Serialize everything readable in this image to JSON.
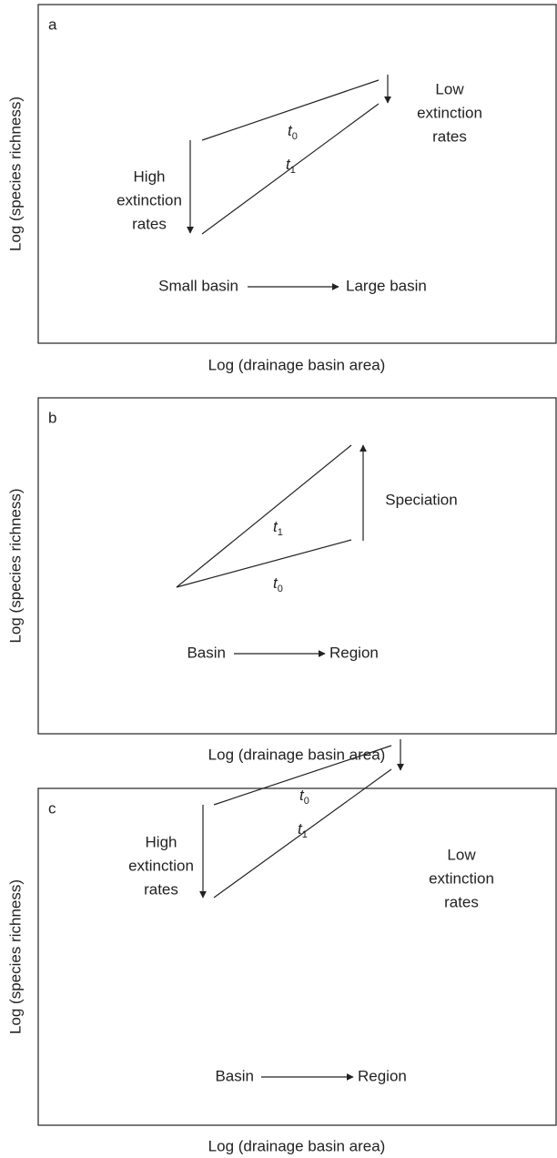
{
  "panels": [
    {
      "label": "a",
      "y_axis_label": "Log (species richness)",
      "x_axis_label": "Log (drainage basin area)",
      "annotations": [
        [
          "High",
          "extinction",
          "rates"
        ],
        [
          "Low",
          "extinction",
          "rates"
        ]
      ],
      "flow": {
        "from": "Small basin",
        "to": "Large basin"
      },
      "line_labels": [
        {
          "symbol": "t",
          "subscript": "0"
        },
        {
          "symbol": "t",
          "subscript": "1"
        }
      ]
    },
    {
      "label": "b",
      "y_axis_label": "Log (species richness)",
      "x_axis_label": "Log (drainage basin area)",
      "annotations": [
        [
          "Speciation"
        ]
      ],
      "flow": {
        "from": "Basin",
        "to": "Region"
      },
      "line_labels": [
        {
          "symbol": "t",
          "subscript": "0"
        },
        {
          "symbol": "t",
          "subscript": "1"
        }
      ]
    },
    {
      "label": "c",
      "y_axis_label": "Log (species richness)",
      "x_axis_label": "Log (drainage basin area)",
      "annotations": [
        [
          "High",
          "extinction",
          "rates"
        ],
        [
          "Low",
          "extinction",
          "rates"
        ]
      ],
      "flow": {
        "from": "Basin",
        "to": "Region"
      },
      "line_labels": [
        {
          "symbol": "t",
          "subscript": "0"
        },
        {
          "symbol": "t",
          "subscript": "1"
        }
      ]
    }
  ]
}
